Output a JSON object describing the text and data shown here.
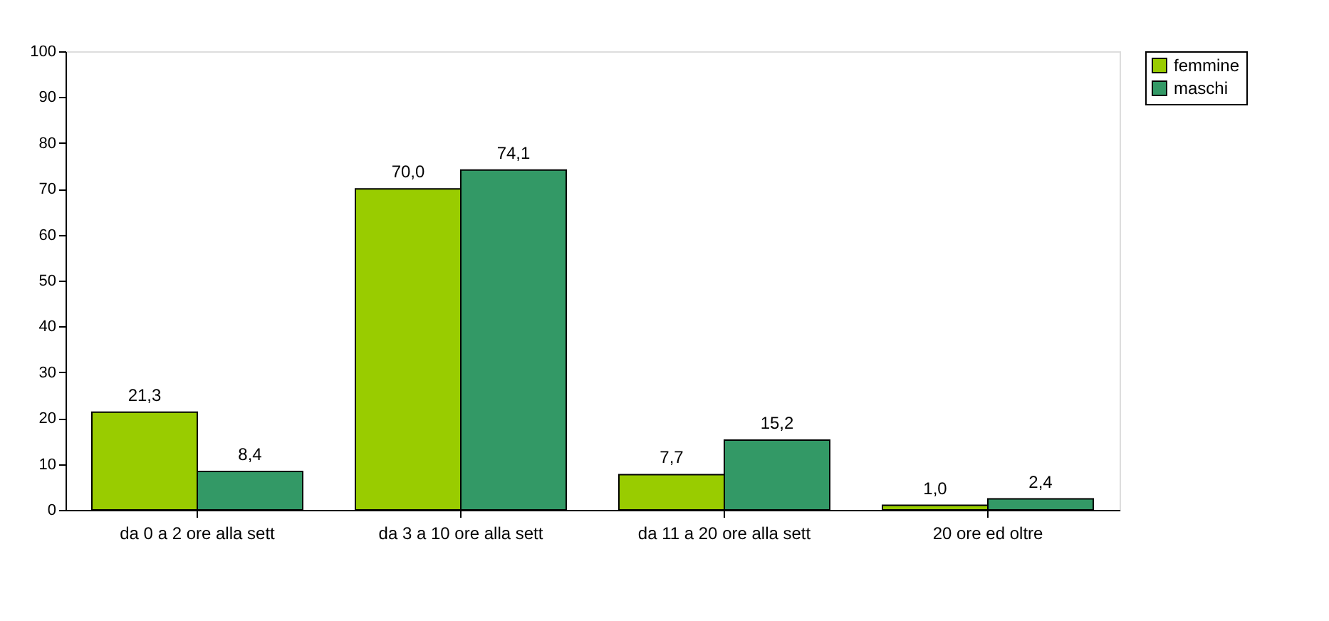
{
  "chart_data": {
    "type": "bar",
    "categories": [
      "da 0 a 2 ore alla sett",
      "da 3 a 10 ore alla sett",
      "da 11 a 20 ore alla sett",
      "20 ore ed oltre"
    ],
    "series": [
      {
        "name": "femmine",
        "color": "#99cc00",
        "values": [
          21.3,
          70.0,
          7.7,
          1.0
        ],
        "value_labels": [
          "21,3",
          "70,0",
          "7,7",
          "1,0"
        ]
      },
      {
        "name": "maschi",
        "color": "#339966",
        "values": [
          8.4,
          74.1,
          15.2,
          2.4
        ],
        "value_labels": [
          "8,4",
          "74,1",
          "15,2",
          "2,4"
        ]
      }
    ],
    "ylim": [
      0,
      100
    ],
    "yticks": [
      0,
      10,
      20,
      30,
      40,
      50,
      60,
      70,
      80,
      90,
      100
    ],
    "grid": false,
    "legend": "right"
  }
}
